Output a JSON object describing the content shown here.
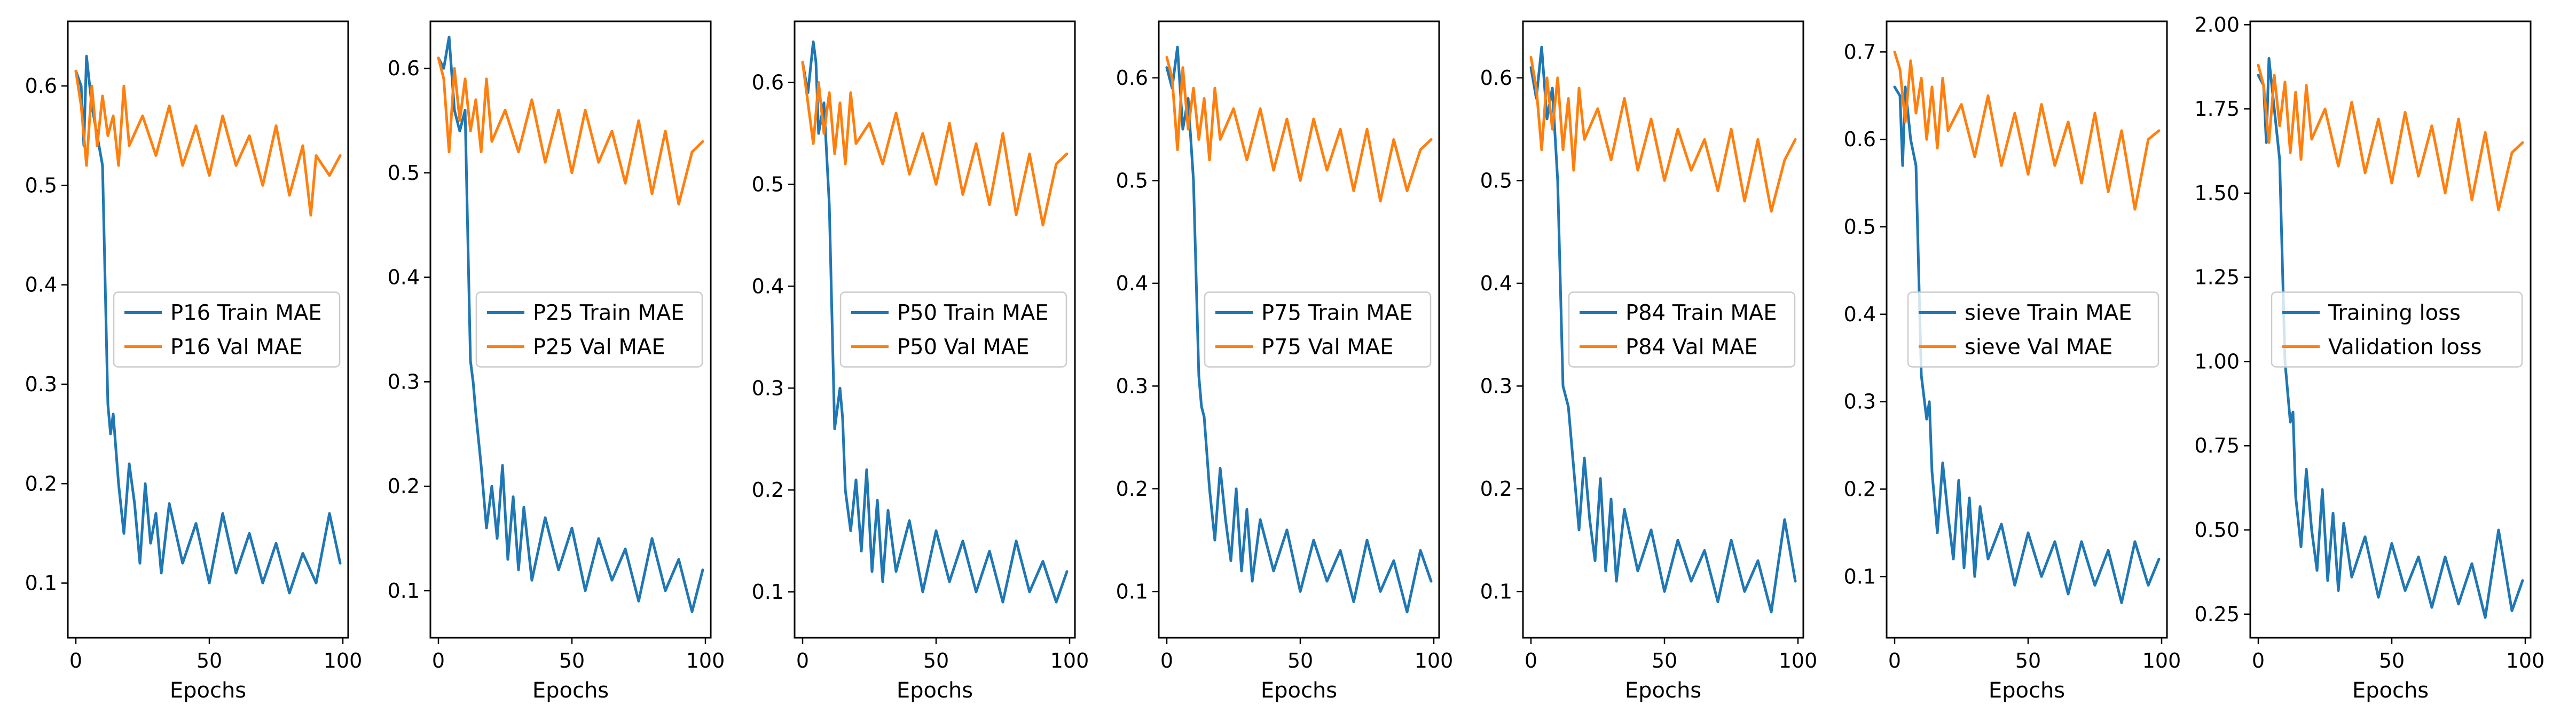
{
  "colors": {
    "train": "#1f77b4",
    "val": "#ff7f0e"
  },
  "chart_data": [
    {
      "type": "line",
      "xlabel": "Epochs",
      "xlim": [
        -3,
        102
      ],
      "ylim": [
        0.045,
        0.665
      ],
      "xticks": [
        0,
        50,
        100
      ],
      "xtick_labels": [
        "0",
        "50",
        "100"
      ],
      "yticks": [
        0.1,
        0.2,
        0.3,
        0.4,
        0.5,
        0.6
      ],
      "ytick_labels": [
        "0.1",
        "0.2",
        "0.3",
        "0.4",
        "0.5",
        "0.6"
      ],
      "legend_placement": "center-right",
      "series": [
        {
          "name": "P16 Train MAE",
          "x": [
            0,
            2,
            3,
            4,
            6,
            8,
            10,
            12,
            13,
            14,
            16,
            18,
            20,
            22,
            24,
            26,
            28,
            30,
            32,
            35,
            40,
            45,
            50,
            55,
            60,
            65,
            70,
            75,
            80,
            85,
            90,
            95,
            99
          ],
          "y": [
            0.615,
            0.6,
            0.54,
            0.63,
            0.58,
            0.55,
            0.52,
            0.28,
            0.25,
            0.27,
            0.2,
            0.15,
            0.22,
            0.18,
            0.12,
            0.2,
            0.14,
            0.17,
            0.11,
            0.18,
            0.12,
            0.16,
            0.1,
            0.17,
            0.11,
            0.15,
            0.1,
            0.14,
            0.09,
            0.13,
            0.1,
            0.17,
            0.12
          ]
        },
        {
          "name": "P16 Val MAE",
          "x": [
            0,
            2,
            4,
            6,
            8,
            10,
            12,
            14,
            16,
            18,
            20,
            25,
            30,
            35,
            40,
            45,
            50,
            55,
            60,
            65,
            70,
            75,
            80,
            85,
            88,
            90,
            95,
            99
          ],
          "y": [
            0.615,
            0.58,
            0.52,
            0.6,
            0.54,
            0.59,
            0.55,
            0.57,
            0.52,
            0.6,
            0.54,
            0.57,
            0.53,
            0.58,
            0.52,
            0.56,
            0.51,
            0.57,
            0.52,
            0.55,
            0.5,
            0.56,
            0.49,
            0.54,
            0.47,
            0.53,
            0.51,
            0.53
          ]
        }
      ]
    },
    {
      "type": "line",
      "xlabel": "Epochs",
      "xlim": [
        -3,
        102
      ],
      "ylim": [
        0.055,
        0.645
      ],
      "xticks": [
        0,
        50,
        100
      ],
      "xtick_labels": [
        "0",
        "50",
        "100"
      ],
      "yticks": [
        0.1,
        0.2,
        0.3,
        0.4,
        0.5,
        0.6
      ],
      "ytick_labels": [
        "0.1",
        "0.2",
        "0.3",
        "0.4",
        "0.5",
        "0.6"
      ],
      "legend_placement": "center-right",
      "series": [
        {
          "name": "P25 Train MAE",
          "x": [
            0,
            2,
            4,
            6,
            8,
            10,
            12,
            13,
            14,
            16,
            18,
            20,
            22,
            24,
            26,
            28,
            30,
            32,
            35,
            40,
            45,
            50,
            55,
            60,
            65,
            70,
            75,
            80,
            85,
            90,
            95,
            99
          ],
          "y": [
            0.61,
            0.6,
            0.63,
            0.56,
            0.54,
            0.56,
            0.32,
            0.3,
            0.27,
            0.22,
            0.16,
            0.2,
            0.15,
            0.22,
            0.13,
            0.19,
            0.12,
            0.18,
            0.11,
            0.17,
            0.12,
            0.16,
            0.1,
            0.15,
            0.11,
            0.14,
            0.09,
            0.15,
            0.1,
            0.13,
            0.08,
            0.12
          ]
        },
        {
          "name": "P25 Val MAE",
          "x": [
            0,
            2,
            4,
            6,
            8,
            10,
            12,
            14,
            16,
            18,
            20,
            25,
            30,
            35,
            40,
            45,
            50,
            55,
            60,
            65,
            70,
            75,
            80,
            85,
            90,
            95,
            99
          ],
          "y": [
            0.61,
            0.59,
            0.52,
            0.6,
            0.55,
            0.59,
            0.54,
            0.57,
            0.52,
            0.59,
            0.53,
            0.56,
            0.52,
            0.57,
            0.51,
            0.56,
            0.5,
            0.56,
            0.51,
            0.54,
            0.49,
            0.55,
            0.48,
            0.54,
            0.47,
            0.52,
            0.53
          ]
        }
      ]
    },
    {
      "type": "line",
      "xlabel": "Epochs",
      "xlim": [
        -3,
        102
      ],
      "ylim": [
        0.055,
        0.66
      ],
      "xticks": [
        0,
        50,
        100
      ],
      "xtick_labels": [
        "0",
        "50",
        "100"
      ],
      "yticks": [
        0.1,
        0.2,
        0.3,
        0.4,
        0.5,
        0.6
      ],
      "ytick_labels": [
        "0.1",
        "0.2",
        "0.3",
        "0.4",
        "0.5",
        "0.6"
      ],
      "legend_placement": "center-right",
      "series": [
        {
          "name": "P50 Train MAE",
          "x": [
            0,
            2,
            4,
            5,
            6,
            8,
            10,
            12,
            14,
            15,
            16,
            18,
            20,
            22,
            24,
            26,
            28,
            30,
            32,
            35,
            40,
            45,
            50,
            55,
            60,
            65,
            70,
            75,
            80,
            85,
            90,
            95,
            99
          ],
          "y": [
            0.62,
            0.59,
            0.64,
            0.62,
            0.55,
            0.58,
            0.48,
            0.26,
            0.3,
            0.27,
            0.2,
            0.16,
            0.21,
            0.14,
            0.22,
            0.12,
            0.19,
            0.11,
            0.18,
            0.12,
            0.17,
            0.1,
            0.16,
            0.11,
            0.15,
            0.1,
            0.14,
            0.09,
            0.15,
            0.1,
            0.13,
            0.09,
            0.12
          ]
        },
        {
          "name": "P50 Val MAE",
          "x": [
            0,
            2,
            4,
            6,
            8,
            10,
            12,
            14,
            16,
            18,
            20,
            25,
            30,
            35,
            40,
            45,
            50,
            55,
            60,
            65,
            70,
            75,
            80,
            85,
            90,
            95,
            99
          ],
          "y": [
            0.62,
            0.58,
            0.54,
            0.6,
            0.55,
            0.59,
            0.53,
            0.58,
            0.52,
            0.59,
            0.54,
            0.56,
            0.52,
            0.57,
            0.51,
            0.55,
            0.5,
            0.56,
            0.49,
            0.54,
            0.48,
            0.55,
            0.47,
            0.53,
            0.46,
            0.52,
            0.53
          ]
        }
      ]
    },
    {
      "type": "line",
      "xlabel": "Epochs",
      "xlim": [
        -3,
        102
      ],
      "ylim": [
        0.055,
        0.655
      ],
      "xticks": [
        0,
        50,
        100
      ],
      "xtick_labels": [
        "0",
        "50",
        "100"
      ],
      "yticks": [
        0.1,
        0.2,
        0.3,
        0.4,
        0.5,
        0.6
      ],
      "ytick_labels": [
        "0.1",
        "0.2",
        "0.3",
        "0.4",
        "0.5",
        "0.6"
      ],
      "legend_placement": "center-right",
      "series": [
        {
          "name": "P75 Train MAE",
          "x": [
            0,
            2,
            4,
            6,
            8,
            10,
            12,
            13,
            14,
            16,
            18,
            20,
            22,
            24,
            26,
            28,
            30,
            32,
            35,
            40,
            45,
            50,
            55,
            60,
            65,
            70,
            75,
            80,
            85,
            90,
            95,
            99
          ],
          "y": [
            0.61,
            0.59,
            0.63,
            0.55,
            0.58,
            0.5,
            0.31,
            0.28,
            0.27,
            0.2,
            0.15,
            0.22,
            0.17,
            0.13,
            0.2,
            0.12,
            0.18,
            0.11,
            0.17,
            0.12,
            0.16,
            0.1,
            0.15,
            0.11,
            0.14,
            0.09,
            0.15,
            0.1,
            0.13,
            0.08,
            0.14,
            0.11
          ]
        },
        {
          "name": "P75 Val MAE",
          "x": [
            0,
            2,
            4,
            6,
            8,
            10,
            12,
            14,
            16,
            18,
            20,
            25,
            30,
            35,
            40,
            45,
            50,
            55,
            60,
            65,
            70,
            75,
            80,
            85,
            90,
            95,
            99
          ],
          "y": [
            0.62,
            0.6,
            0.53,
            0.61,
            0.55,
            0.59,
            0.54,
            0.58,
            0.52,
            0.59,
            0.54,
            0.57,
            0.52,
            0.57,
            0.51,
            0.56,
            0.5,
            0.56,
            0.51,
            0.55,
            0.49,
            0.55,
            0.48,
            0.54,
            0.49,
            0.53,
            0.54
          ]
        }
      ]
    },
    {
      "type": "line",
      "xlabel": "Epochs",
      "xlim": [
        -3,
        102
      ],
      "ylim": [
        0.055,
        0.655
      ],
      "xticks": [
        0,
        50,
        100
      ],
      "xtick_labels": [
        "0",
        "50",
        "100"
      ],
      "yticks": [
        0.1,
        0.2,
        0.3,
        0.4,
        0.5,
        0.6
      ],
      "ytick_labels": [
        "0.1",
        "0.2",
        "0.3",
        "0.4",
        "0.5",
        "0.6"
      ],
      "legend_placement": "center-right",
      "series": [
        {
          "name": "P84 Train MAE",
          "x": [
            0,
            2,
            4,
            6,
            8,
            10,
            12,
            13,
            14,
            16,
            18,
            20,
            22,
            24,
            26,
            28,
            30,
            32,
            35,
            40,
            45,
            50,
            55,
            60,
            65,
            70,
            75,
            80,
            85,
            90,
            95,
            99
          ],
          "y": [
            0.61,
            0.58,
            0.63,
            0.56,
            0.59,
            0.5,
            0.3,
            0.29,
            0.28,
            0.22,
            0.16,
            0.23,
            0.17,
            0.13,
            0.21,
            0.12,
            0.19,
            0.11,
            0.18,
            0.12,
            0.16,
            0.1,
            0.15,
            0.11,
            0.14,
            0.09,
            0.15,
            0.1,
            0.13,
            0.08,
            0.17,
            0.11
          ]
        },
        {
          "name": "P84 Val MAE",
          "x": [
            0,
            2,
            4,
            6,
            8,
            10,
            12,
            14,
            16,
            18,
            20,
            25,
            30,
            35,
            40,
            45,
            50,
            55,
            60,
            65,
            70,
            75,
            80,
            85,
            90,
            95,
            99
          ],
          "y": [
            0.62,
            0.59,
            0.53,
            0.6,
            0.55,
            0.6,
            0.53,
            0.58,
            0.51,
            0.59,
            0.54,
            0.57,
            0.52,
            0.58,
            0.51,
            0.56,
            0.5,
            0.55,
            0.51,
            0.54,
            0.49,
            0.55,
            0.48,
            0.54,
            0.47,
            0.52,
            0.54
          ]
        }
      ]
    },
    {
      "type": "line",
      "xlabel": "Epochs",
      "xlim": [
        -3,
        102
      ],
      "ylim": [
        0.03,
        0.735
      ],
      "xticks": [
        0,
        50,
        100
      ],
      "xtick_labels": [
        "0",
        "50",
        "100"
      ],
      "yticks": [
        0.1,
        0.2,
        0.3,
        0.4,
        0.5,
        0.6,
        0.7
      ],
      "ytick_labels": [
        "0.1",
        "0.2",
        "0.3",
        "0.4",
        "0.5",
        "0.6",
        "0.7"
      ],
      "legend_placement": "center-right",
      "series": [
        {
          "name": "sieve Train MAE",
          "x": [
            0,
            2,
            3,
            4,
            6,
            8,
            10,
            12,
            13,
            14,
            16,
            18,
            20,
            22,
            24,
            26,
            28,
            30,
            32,
            35,
            40,
            45,
            50,
            55,
            60,
            65,
            70,
            75,
            80,
            85,
            90,
            95,
            99
          ],
          "y": [
            0.66,
            0.65,
            0.57,
            0.66,
            0.6,
            0.57,
            0.33,
            0.28,
            0.3,
            0.22,
            0.15,
            0.23,
            0.17,
            0.12,
            0.21,
            0.11,
            0.19,
            0.1,
            0.18,
            0.12,
            0.16,
            0.09,
            0.15,
            0.1,
            0.14,
            0.08,
            0.14,
            0.09,
            0.13,
            0.07,
            0.14,
            0.09,
            0.12
          ]
        },
        {
          "name": "sieve Val MAE",
          "x": [
            0,
            2,
            4,
            6,
            8,
            10,
            12,
            14,
            16,
            18,
            20,
            25,
            30,
            35,
            40,
            45,
            50,
            55,
            60,
            65,
            70,
            75,
            80,
            85,
            90,
            95,
            99
          ],
          "y": [
            0.7,
            0.68,
            0.62,
            0.69,
            0.63,
            0.67,
            0.6,
            0.66,
            0.59,
            0.67,
            0.61,
            0.64,
            0.58,
            0.65,
            0.57,
            0.63,
            0.56,
            0.64,
            0.57,
            0.62,
            0.55,
            0.63,
            0.54,
            0.61,
            0.52,
            0.6,
            0.61
          ]
        }
      ]
    },
    {
      "type": "line",
      "xlabel": "Epochs",
      "xlim": [
        -3,
        102
      ],
      "ylim": [
        0.18,
        2.01
      ],
      "xticks": [
        0,
        50,
        100
      ],
      "xtick_labels": [
        "0",
        "50",
        "100"
      ],
      "yticks": [
        0.25,
        0.5,
        0.75,
        1.0,
        1.25,
        1.5,
        1.75,
        2.0
      ],
      "ytick_labels": [
        "0.25",
        "0.50",
        "0.75",
        "1.00",
        "1.25",
        "1.50",
        "1.75",
        "2.00"
      ],
      "legend_placement": "center-right",
      "series": [
        {
          "name": "Training loss",
          "x": [
            0,
            2,
            3,
            4,
            6,
            8,
            10,
            12,
            13,
            14,
            16,
            18,
            20,
            22,
            24,
            26,
            28,
            30,
            32,
            35,
            40,
            45,
            50,
            55,
            60,
            65,
            70,
            75,
            80,
            85,
            90,
            95,
            99
          ],
          "y": [
            1.85,
            1.82,
            1.65,
            1.9,
            1.75,
            1.6,
            1.0,
            0.82,
            0.85,
            0.6,
            0.45,
            0.68,
            0.5,
            0.38,
            0.62,
            0.35,
            0.55,
            0.32,
            0.52,
            0.36,
            0.48,
            0.3,
            0.46,
            0.32,
            0.42,
            0.27,
            0.42,
            0.28,
            0.4,
            0.24,
            0.5,
            0.26,
            0.35
          ]
        },
        {
          "name": "Validation loss",
          "x": [
            0,
            2,
            4,
            6,
            8,
            10,
            12,
            14,
            16,
            18,
            20,
            25,
            30,
            35,
            40,
            45,
            50,
            55,
            60,
            65,
            70,
            75,
            80,
            85,
            90,
            95,
            99
          ],
          "y": [
            1.88,
            1.82,
            1.65,
            1.85,
            1.7,
            1.83,
            1.62,
            1.8,
            1.6,
            1.82,
            1.66,
            1.75,
            1.58,
            1.77,
            1.56,
            1.72,
            1.53,
            1.74,
            1.55,
            1.7,
            1.5,
            1.72,
            1.48,
            1.68,
            1.45,
            1.62,
            1.65
          ]
        }
      ]
    }
  ]
}
